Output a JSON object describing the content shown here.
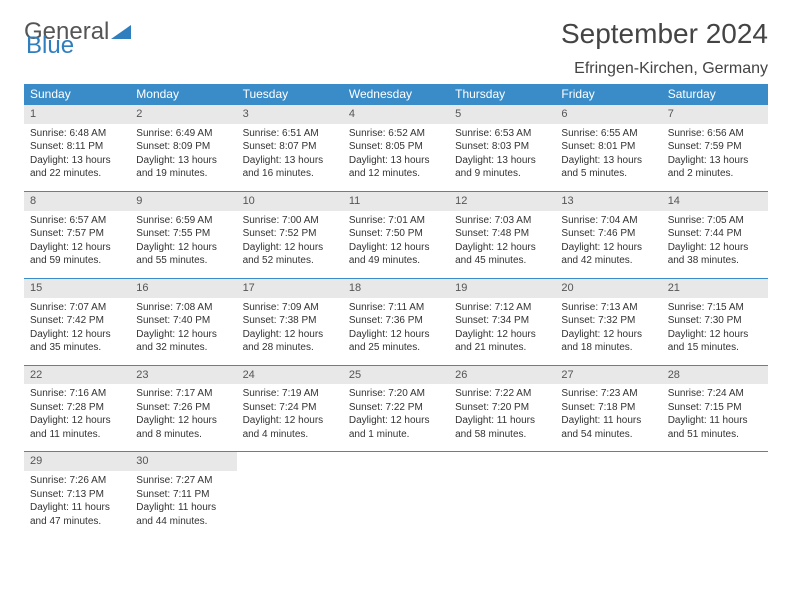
{
  "brand": {
    "part1": "General",
    "part2": "Blue"
  },
  "title": "September 2024",
  "location": "Efringen-Kirchen, Germany",
  "colors": {
    "header_bg": "#3a8cc9",
    "header_text": "#ffffff",
    "daynum_bg": "#e8e8e8",
    "border": "#3a8cc9",
    "body_text": "#333333",
    "title_text": "#444444",
    "brand_gray": "#555555",
    "brand_blue": "#2f7fbf",
    "page_bg": "#ffffff"
  },
  "fonts": {
    "title_size_pt": 21,
    "location_size_pt": 12,
    "header_size_pt": 9,
    "cell_size_pt": 7.5,
    "brand_size_pt": 18
  },
  "layout": {
    "columns": 7,
    "rows": 5,
    "leading_blanks": 0,
    "trailing_blanks": 5
  },
  "weekdays": [
    "Sunday",
    "Monday",
    "Tuesday",
    "Wednesday",
    "Thursday",
    "Friday",
    "Saturday"
  ],
  "days": [
    {
      "n": "1",
      "sunrise": "Sunrise: 6:48 AM",
      "sunset": "Sunset: 8:11 PM",
      "daylight": "Daylight: 13 hours and 22 minutes."
    },
    {
      "n": "2",
      "sunrise": "Sunrise: 6:49 AM",
      "sunset": "Sunset: 8:09 PM",
      "daylight": "Daylight: 13 hours and 19 minutes."
    },
    {
      "n": "3",
      "sunrise": "Sunrise: 6:51 AM",
      "sunset": "Sunset: 8:07 PM",
      "daylight": "Daylight: 13 hours and 16 minutes."
    },
    {
      "n": "4",
      "sunrise": "Sunrise: 6:52 AM",
      "sunset": "Sunset: 8:05 PM",
      "daylight": "Daylight: 13 hours and 12 minutes."
    },
    {
      "n": "5",
      "sunrise": "Sunrise: 6:53 AM",
      "sunset": "Sunset: 8:03 PM",
      "daylight": "Daylight: 13 hours and 9 minutes."
    },
    {
      "n": "6",
      "sunrise": "Sunrise: 6:55 AM",
      "sunset": "Sunset: 8:01 PM",
      "daylight": "Daylight: 13 hours and 5 minutes."
    },
    {
      "n": "7",
      "sunrise": "Sunrise: 6:56 AM",
      "sunset": "Sunset: 7:59 PM",
      "daylight": "Daylight: 13 hours and 2 minutes."
    },
    {
      "n": "8",
      "sunrise": "Sunrise: 6:57 AM",
      "sunset": "Sunset: 7:57 PM",
      "daylight": "Daylight: 12 hours and 59 minutes."
    },
    {
      "n": "9",
      "sunrise": "Sunrise: 6:59 AM",
      "sunset": "Sunset: 7:55 PM",
      "daylight": "Daylight: 12 hours and 55 minutes."
    },
    {
      "n": "10",
      "sunrise": "Sunrise: 7:00 AM",
      "sunset": "Sunset: 7:52 PM",
      "daylight": "Daylight: 12 hours and 52 minutes."
    },
    {
      "n": "11",
      "sunrise": "Sunrise: 7:01 AM",
      "sunset": "Sunset: 7:50 PM",
      "daylight": "Daylight: 12 hours and 49 minutes."
    },
    {
      "n": "12",
      "sunrise": "Sunrise: 7:03 AM",
      "sunset": "Sunset: 7:48 PM",
      "daylight": "Daylight: 12 hours and 45 minutes."
    },
    {
      "n": "13",
      "sunrise": "Sunrise: 7:04 AM",
      "sunset": "Sunset: 7:46 PM",
      "daylight": "Daylight: 12 hours and 42 minutes."
    },
    {
      "n": "14",
      "sunrise": "Sunrise: 7:05 AM",
      "sunset": "Sunset: 7:44 PM",
      "daylight": "Daylight: 12 hours and 38 minutes."
    },
    {
      "n": "15",
      "sunrise": "Sunrise: 7:07 AM",
      "sunset": "Sunset: 7:42 PM",
      "daylight": "Daylight: 12 hours and 35 minutes."
    },
    {
      "n": "16",
      "sunrise": "Sunrise: 7:08 AM",
      "sunset": "Sunset: 7:40 PM",
      "daylight": "Daylight: 12 hours and 32 minutes."
    },
    {
      "n": "17",
      "sunrise": "Sunrise: 7:09 AM",
      "sunset": "Sunset: 7:38 PM",
      "daylight": "Daylight: 12 hours and 28 minutes."
    },
    {
      "n": "18",
      "sunrise": "Sunrise: 7:11 AM",
      "sunset": "Sunset: 7:36 PM",
      "daylight": "Daylight: 12 hours and 25 minutes."
    },
    {
      "n": "19",
      "sunrise": "Sunrise: 7:12 AM",
      "sunset": "Sunset: 7:34 PM",
      "daylight": "Daylight: 12 hours and 21 minutes."
    },
    {
      "n": "20",
      "sunrise": "Sunrise: 7:13 AM",
      "sunset": "Sunset: 7:32 PM",
      "daylight": "Daylight: 12 hours and 18 minutes."
    },
    {
      "n": "21",
      "sunrise": "Sunrise: 7:15 AM",
      "sunset": "Sunset: 7:30 PM",
      "daylight": "Daylight: 12 hours and 15 minutes."
    },
    {
      "n": "22",
      "sunrise": "Sunrise: 7:16 AM",
      "sunset": "Sunset: 7:28 PM",
      "daylight": "Daylight: 12 hours and 11 minutes."
    },
    {
      "n": "23",
      "sunrise": "Sunrise: 7:17 AM",
      "sunset": "Sunset: 7:26 PM",
      "daylight": "Daylight: 12 hours and 8 minutes."
    },
    {
      "n": "24",
      "sunrise": "Sunrise: 7:19 AM",
      "sunset": "Sunset: 7:24 PM",
      "daylight": "Daylight: 12 hours and 4 minutes."
    },
    {
      "n": "25",
      "sunrise": "Sunrise: 7:20 AM",
      "sunset": "Sunset: 7:22 PM",
      "daylight": "Daylight: 12 hours and 1 minute."
    },
    {
      "n": "26",
      "sunrise": "Sunrise: 7:22 AM",
      "sunset": "Sunset: 7:20 PM",
      "daylight": "Daylight: 11 hours and 58 minutes."
    },
    {
      "n": "27",
      "sunrise": "Sunrise: 7:23 AM",
      "sunset": "Sunset: 7:18 PM",
      "daylight": "Daylight: 11 hours and 54 minutes."
    },
    {
      "n": "28",
      "sunrise": "Sunrise: 7:24 AM",
      "sunset": "Sunset: 7:15 PM",
      "daylight": "Daylight: 11 hours and 51 minutes."
    },
    {
      "n": "29",
      "sunrise": "Sunrise: 7:26 AM",
      "sunset": "Sunset: 7:13 PM",
      "daylight": "Daylight: 11 hours and 47 minutes."
    },
    {
      "n": "30",
      "sunrise": "Sunrise: 7:27 AM",
      "sunset": "Sunset: 7:11 PM",
      "daylight": "Daylight: 11 hours and 44 minutes."
    }
  ]
}
